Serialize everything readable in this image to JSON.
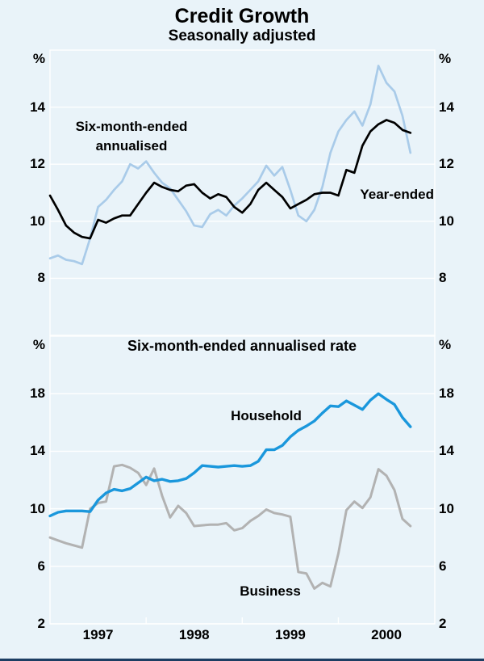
{
  "title": "Credit Growth",
  "subtitle": "Seasonally adjusted",
  "percent_symbol": "%",
  "annotation_top": {
    "line1": "Six-month-ended",
    "line2": "annualised"
  },
  "labels": {
    "year_ended": "Year-ended",
    "panel2_title": "Six-month-ended annualised rate",
    "household": "Household",
    "business": "Business"
  },
  "colors": {
    "background": "#e9f3f9",
    "grid": "#ffffff",
    "six_month_line": "#a9cbe9",
    "year_ended_line": "#000000",
    "household_line": "#1a97dc",
    "business_line": "#b2b2b2",
    "bottom_rule": "#1c3e63"
  },
  "chart_data": [
    {
      "type": "line",
      "panel": "top",
      "title": "Seasonally adjusted",
      "unit": "%",
      "x_monthly_start": "1997-01",
      "x_monthly_end": "2000-10",
      "x_tick_labels": [
        "1997",
        "1998",
        "1999",
        "2000"
      ],
      "ylim": [
        6,
        16
      ],
      "yticks": [
        8,
        10,
        12,
        14
      ],
      "grid": true,
      "series": [
        {
          "name": "Six-month-ended annualised",
          "values": [
            8.7,
            8.8,
            8.65,
            8.6,
            8.5,
            9.4,
            10.5,
            10.75,
            11.1,
            11.4,
            12.0,
            11.85,
            12.1,
            11.7,
            11.35,
            11.15,
            10.75,
            10.35,
            9.85,
            9.8,
            10.25,
            10.4,
            10.2,
            10.55,
            10.8,
            11.1,
            11.4,
            11.95,
            11.6,
            11.9,
            11.1,
            10.2,
            10.0,
            10.4,
            11.2,
            12.4,
            13.15,
            13.55,
            13.85,
            13.35,
            14.1,
            15.45,
            14.85,
            14.55,
            13.7,
            12.4
          ]
        },
        {
          "name": "Year-ended",
          "values": [
            10.9,
            10.4,
            9.85,
            9.6,
            9.45,
            9.4,
            10.05,
            9.95,
            10.1,
            10.2,
            10.2,
            10.6,
            11.0,
            11.35,
            11.2,
            11.1,
            11.05,
            11.25,
            11.3,
            11.0,
            10.8,
            10.95,
            10.85,
            10.5,
            10.3,
            10.6,
            11.1,
            11.35,
            11.1,
            10.85,
            10.45,
            10.6,
            10.75,
            10.95,
            11.0,
            11.0,
            10.9,
            11.8,
            11.7,
            12.65,
            13.15,
            13.4,
            13.55,
            13.45,
            13.2,
            13.1
          ]
        }
      ]
    },
    {
      "type": "line",
      "panel": "bottom",
      "title": "Six-month-ended annualised rate",
      "unit": "%",
      "x_monthly_start": "1997-01",
      "x_monthly_end": "2000-10",
      "x_tick_labels": [
        "1997",
        "1998",
        "1999",
        "2000"
      ],
      "ylim": [
        2,
        22
      ],
      "yticks": [
        2,
        6,
        10,
        14,
        18
      ],
      "grid": true,
      "series": [
        {
          "name": "Household",
          "values": [
            9.5,
            9.75,
            9.85,
            9.85,
            9.85,
            9.8,
            10.6,
            11.1,
            11.35,
            11.25,
            11.4,
            11.8,
            12.2,
            11.95,
            12.05,
            11.9,
            11.95,
            12.1,
            12.5,
            13.0,
            12.95,
            12.9,
            12.95,
            13.0,
            12.95,
            13.0,
            13.3,
            14.1,
            14.1,
            14.4,
            15.0,
            15.45,
            15.75,
            16.1,
            16.65,
            17.15,
            17.1,
            17.5,
            17.2,
            16.9,
            17.55,
            18.0,
            17.6,
            17.25,
            16.35,
            15.7
          ]
        },
        {
          "name": "Business",
          "values": [
            8.0,
            7.8,
            7.6,
            7.45,
            7.3,
            10.0,
            10.4,
            10.5,
            12.95,
            13.05,
            12.85,
            12.5,
            11.65,
            12.8,
            10.9,
            9.4,
            10.2,
            9.7,
            8.8,
            8.85,
            8.9,
            8.9,
            9.0,
            8.5,
            8.65,
            9.15,
            9.5,
            9.95,
            9.7,
            9.6,
            9.45,
            5.6,
            5.5,
            4.45,
            4.85,
            4.6,
            6.9,
            9.9,
            10.5,
            10.05,
            10.8,
            12.75,
            12.3,
            11.3,
            9.3,
            8.8
          ]
        }
      ]
    }
  ]
}
